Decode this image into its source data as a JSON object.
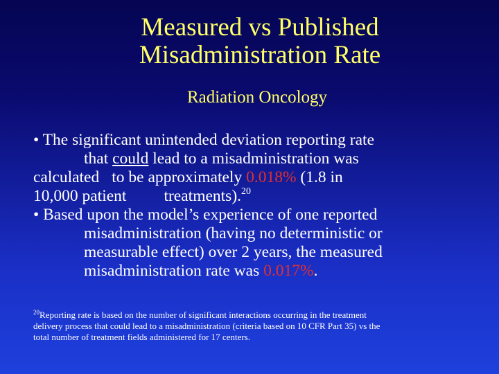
{
  "title": {
    "line1": "Measured vs Published",
    "line2": "Misadministration Rate",
    "subtitle": "Radiation Oncology"
  },
  "bullet1": {
    "l1": "• The significant unintended deviation reporting rate",
    "l2a": "that ",
    "l2u": "could",
    "l2b": " lead to a misadministration was",
    "l3a": "calculated",
    "l3b": "to be approximately ",
    "l3red": "0.018%",
    "l3c": " (1.8 in",
    "l4a": "10,000 patient",
    "l4b": "treatments).",
    "l4sup": "20"
  },
  "bullet2": {
    "l1": "• Based upon the model’s experience of one reported",
    "l2": "misadministration (having no deterministic or",
    "l3": "measurable effect) over 2 years, the measured",
    "l4a": "misadministration rate was ",
    "l4red": "0.017%",
    "l4b": "."
  },
  "footnote": {
    "sup": "20",
    "l1": "Reporting rate is based on the number of significant interactions occurring in the treatment",
    "l2": "delivery process that could lead to a misadministration (criteria based on 10 CFR Part 35) vs the",
    "l3": "total number of treatment fields administered for 17 centers."
  },
  "colors": {
    "title": "#ffff66",
    "highlight": "#e03030",
    "text": "#ffffff"
  }
}
